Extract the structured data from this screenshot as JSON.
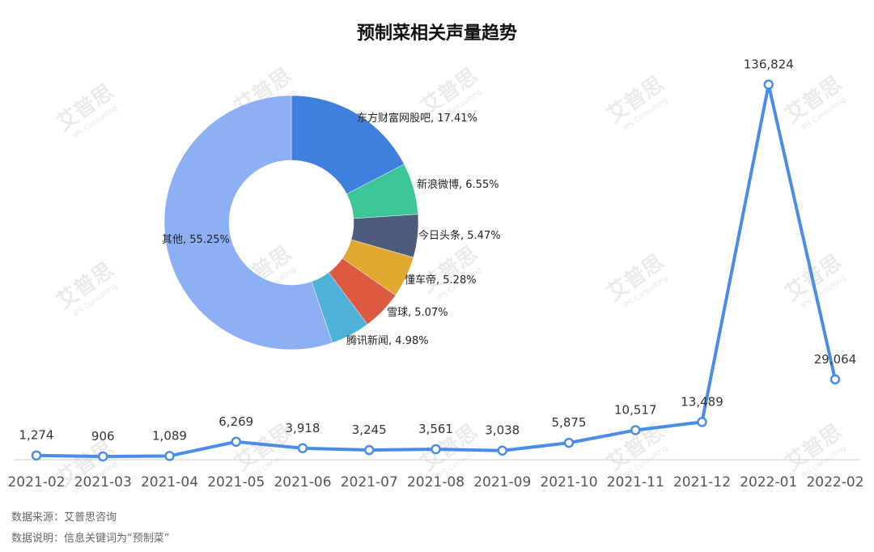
{
  "watermark": {
    "text": "艾普思",
    "sub": "IPS Consulting"
  },
  "source_note": "数据来源：艾普思咨询",
  "keyword_note": "数据说明：信息关键词为“预制菜”",
  "colors": {
    "line": "#4a8de6",
    "axis": "#cccccc"
  },
  "chart_data": [
    {
      "type": "line",
      "title": "预制菜相关声量趋势",
      "x": [
        "2021-02",
        "2021-03",
        "2021-04",
        "2021-05",
        "2021-06",
        "2021-07",
        "2021-08",
        "2021-09",
        "2021-10",
        "2021-11",
        "2021-12",
        "2022-01",
        "2022-02"
      ],
      "values": [
        1274,
        906,
        1089,
        6269,
        3918,
        3245,
        3561,
        3038,
        5875,
        10517,
        13489,
        136824,
        29064
      ],
      "labels": [
        "1,274",
        "906",
        "1,089",
        "6,269",
        "3,918",
        "3,245",
        "3,561",
        "3,038",
        "5,875",
        "10,517",
        "13,489",
        "136,824",
        "29,064"
      ],
      "ylim": [
        0,
        150000
      ],
      "grid": false
    },
    {
      "type": "pie",
      "style": "donut",
      "slices": [
        {
          "name": "东方财富网股吧",
          "value": 17.41,
          "label": "东方财富网股吧, 17.41%",
          "color": "#3f7fde"
        },
        {
          "name": "新浪微博",
          "value": 6.55,
          "label": "新浪微博, 6.55%",
          "color": "#3cc596"
        },
        {
          "name": "今日头条",
          "value": 5.47,
          "label": "今日头条, 5.47%",
          "color": "#4d5b7c"
        },
        {
          "name": "懂车帝",
          "value": 5.28,
          "label": "懂车帝, 5.28%",
          "color": "#e1a82f"
        },
        {
          "name": "雪球",
          "value": 5.07,
          "label": "雪球, 5.07%",
          "color": "#dc5a42"
        },
        {
          "name": "腾讯新闻",
          "value": 4.98,
          "label": "腾讯新闻, 4.98%",
          "color": "#4fb1d8"
        },
        {
          "name": "其他",
          "value": 55.25,
          "label": "其他, 55.25%",
          "color": "#8db0f4"
        }
      ]
    }
  ]
}
